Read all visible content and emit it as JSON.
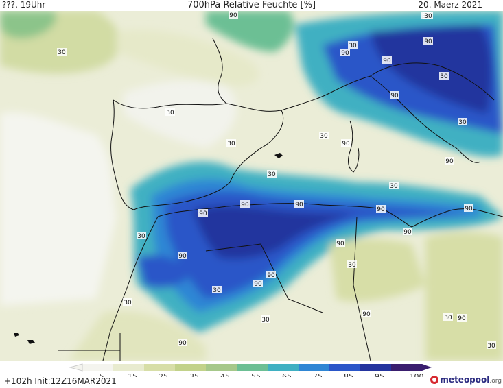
{
  "header": {
    "left": "???, 19Uhr",
    "title": "700hPa Relative Feuchte [%]",
    "date": "20. Maerz 2021"
  },
  "footer": {
    "init": "+102h  Init:12Z16MAR2021",
    "logo_text": "meteopool",
    "logo_ext": ".org"
  },
  "legend": {
    "ticks": [
      "5",
      "15",
      "25",
      "35",
      "45",
      "55",
      "65",
      "75",
      "85",
      "95",
      "100"
    ],
    "colors": [
      "#f4f4ee",
      "#e8ebcf",
      "#d7dea7",
      "#c2d28a",
      "#a6c88a",
      "#6cbf94",
      "#3fb0c2",
      "#2f86d4",
      "#2a56c8",
      "#24349e",
      "#3a1e6e"
    ]
  },
  "contour_labels": [
    "30",
    "90",
    "30",
    "90",
    "90",
    "30",
    "90",
    "30",
    "90",
    "30",
    "30",
    "90",
    "30",
    "30",
    "90",
    "90",
    "90",
    "90",
    "90",
    "30",
    "90",
    "90",
    "90",
    "30",
    "30",
    "90",
    "90",
    "90",
    "30",
    "30",
    "30",
    "90",
    "90",
    "30",
    "30",
    "30",
    "30",
    "90"
  ]
}
